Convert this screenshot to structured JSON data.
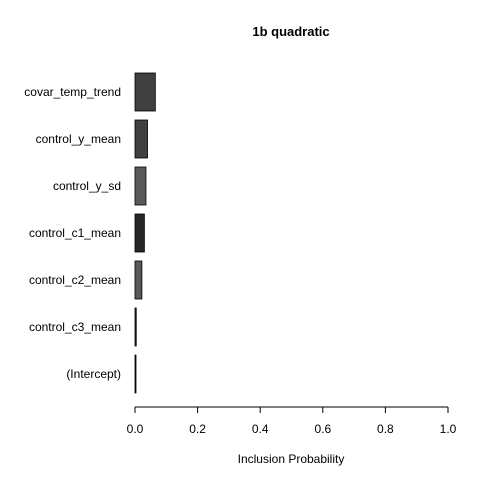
{
  "chart_data": {
    "type": "bar",
    "orientation": "horizontal",
    "title": "1b quadratic",
    "xlabel": "Inclusion Probability",
    "ylabel": "",
    "xlim": [
      0,
      1
    ],
    "xticks": [
      0.0,
      0.2,
      0.4,
      0.6,
      0.8,
      1.0
    ],
    "xtick_labels": [
      "0.0",
      "0.2",
      "0.4",
      "0.6",
      "0.8",
      "1.0"
    ],
    "categories": [
      "covar_temp_trend",
      "control_y_mean",
      "control_y_sd",
      "control_c1_mean",
      "control_c2_mean",
      "control_c3_mean",
      "(Intercept)"
    ],
    "values": [
      0.065,
      0.04,
      0.035,
      0.03,
      0.022,
      0.004,
      0.001
    ],
    "bar_colors": [
      "#404040",
      "#404040",
      "#595959",
      "#262626",
      "#595959",
      "#262626",
      "#262626"
    ],
    "grid": false,
    "legend": "none"
  }
}
